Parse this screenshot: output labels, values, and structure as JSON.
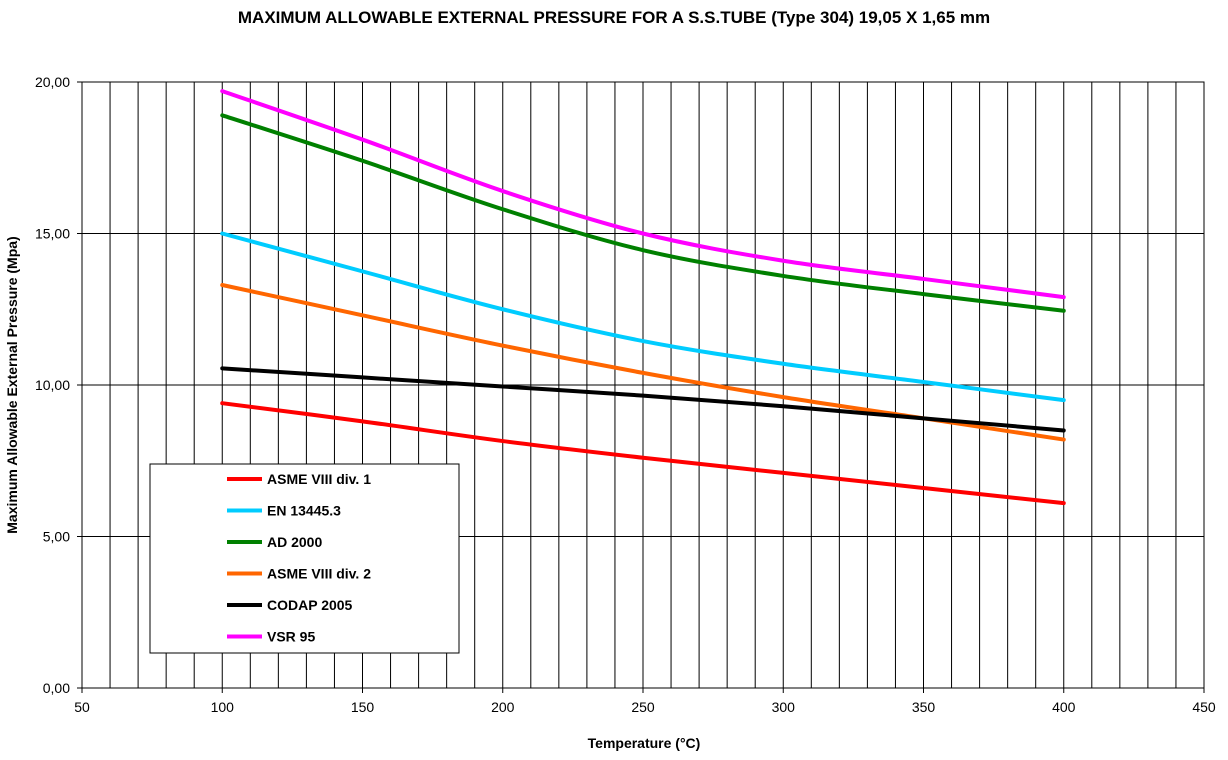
{
  "chart_data": {
    "type": "line",
    "title": "MAXIMUM  ALLOWABLE EXTERNAL PRESSURE FOR A S.S.TUBE (Type 304) 19,05 X 1,65 mm",
    "xlabel": "Temperature (°C)",
    "ylabel": "Maximum  Allowable  External Pressure (Mpa)",
    "xlim": [
      50,
      450
    ],
    "ylim": [
      0,
      20
    ],
    "xticks": [
      50,
      100,
      150,
      200,
      250,
      300,
      350,
      400,
      450
    ],
    "xtick_labels": [
      "50",
      "100",
      "150",
      "200",
      "250",
      "300",
      "350",
      "400",
      "450"
    ],
    "yticks": [
      0,
      5,
      10,
      15,
      20
    ],
    "ytick_labels": [
      "0,00",
      "5,00",
      "10,00",
      "15,00",
      "20,00"
    ],
    "grid": {
      "vertical_step": 10,
      "horizontal_step": 5
    },
    "legend_position": "bottom-left",
    "x": [
      100,
      150,
      200,
      250,
      300,
      350,
      400
    ],
    "series": [
      {
        "name": "ASME VIII div. 1",
        "color": "#ff0000",
        "values": [
          9.4,
          8.8,
          8.15,
          7.6,
          7.1,
          6.6,
          6.1
        ]
      },
      {
        "name": "EN 13445.3",
        "color": "#00ccff",
        "values": [
          15.0,
          13.75,
          12.5,
          11.45,
          10.7,
          10.1,
          9.5
        ]
      },
      {
        "name": "AD 2000",
        "color": "#008000",
        "values": [
          18.9,
          17.4,
          15.8,
          14.45,
          13.6,
          13.0,
          12.45
        ]
      },
      {
        "name": "ASME VIII div. 2",
        "color": "#ff6600",
        "values": [
          13.3,
          12.3,
          11.3,
          10.4,
          9.6,
          8.9,
          8.2
        ]
      },
      {
        "name": "CODAP 2005",
        "color": "#000000",
        "values": [
          10.55,
          10.25,
          9.95,
          9.65,
          9.3,
          8.9,
          8.5
        ]
      },
      {
        "name": "VSR 95",
        "color": "#ff00ff",
        "values": [
          19.7,
          18.1,
          16.4,
          15.0,
          14.1,
          13.5,
          12.9
        ]
      }
    ]
  }
}
